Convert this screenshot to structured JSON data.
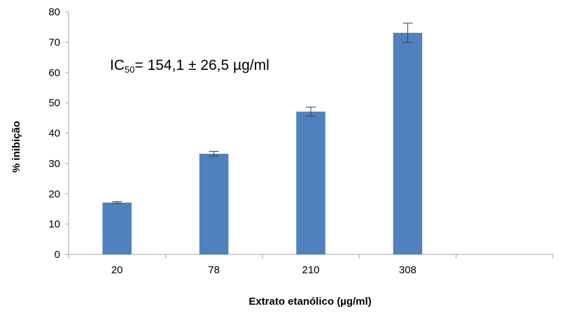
{
  "chart_data": {
    "type": "bar",
    "categories": [
      "20",
      "78",
      "210",
      "308",
      ""
    ],
    "values": [
      17.1,
      33.2,
      47.1,
      73.1,
      null
    ],
    "errors": [
      0.3,
      0.8,
      1.5,
      3.2,
      null
    ],
    "xlabel": "Extrato etanólico (µg/ml)",
    "ylabel": "% inibição",
    "ylim": [
      0,
      80
    ],
    "yticks": [
      "0",
      "10",
      "20",
      "30",
      "40",
      "50",
      "60",
      "70",
      "80"
    ],
    "grid": false,
    "bar_color": "#4f81bd",
    "annotation": {
      "prefix": "IC",
      "subscript": "50",
      "rest": "= 154,1 ± 26,5 µg/ml"
    }
  }
}
